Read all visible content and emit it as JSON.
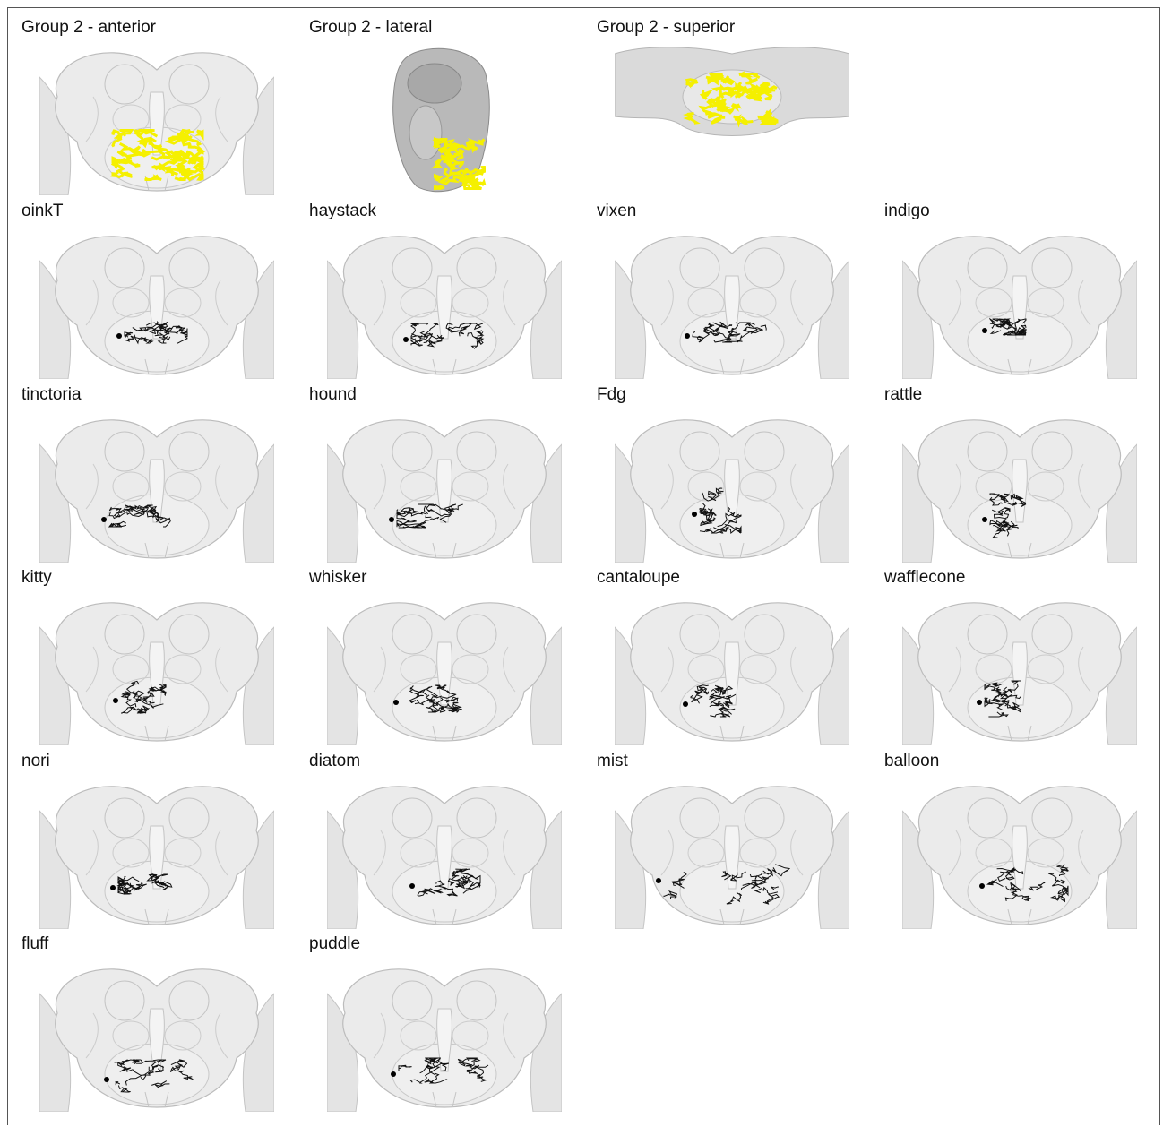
{
  "views": [
    "Group 2 - anterior",
    "Group 2 - lateral",
    "Group 2 - superior"
  ],
  "neurons": [
    "oinkT",
    "haystack",
    "vixen",
    "indigo",
    "tinctoria",
    "hound",
    "Fdg",
    "rattle",
    "kitty",
    "whisker",
    "cantaloupe",
    "wafflecone",
    "nori",
    "diatom",
    "mist",
    "balloon",
    "fluff",
    "puddle"
  ]
}
